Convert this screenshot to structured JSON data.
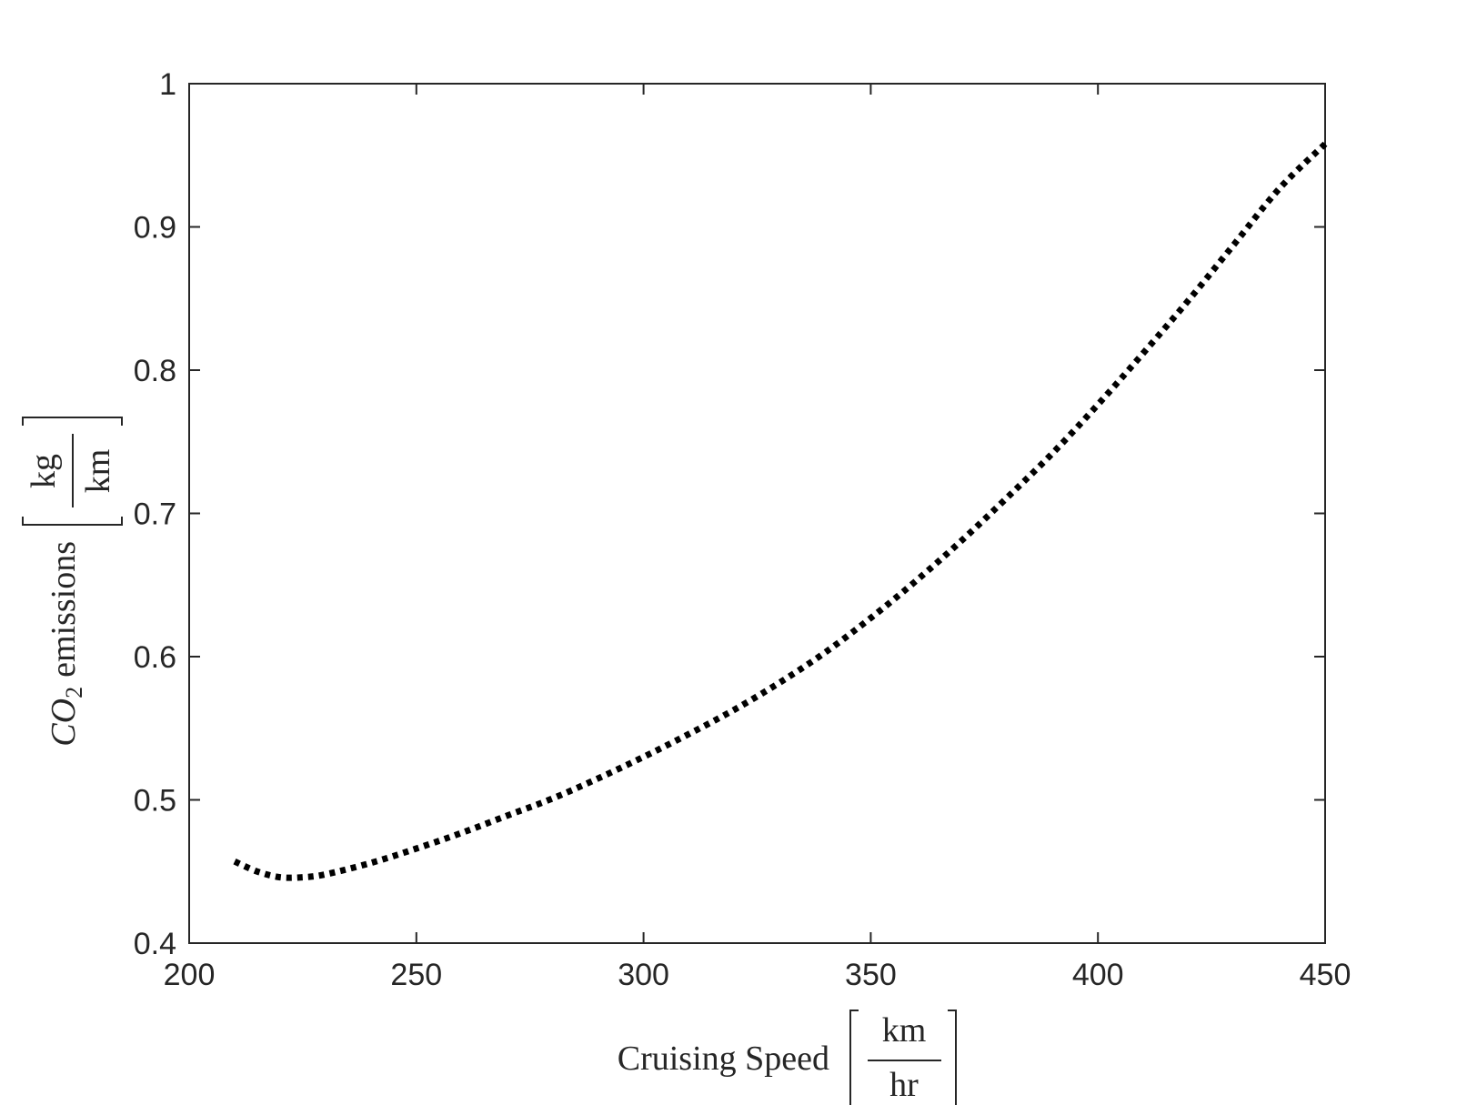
{
  "chart_data": {
    "type": "line",
    "title": "",
    "xlabel": {
      "text": "Cruising Speed",
      "unit_numerator": "km",
      "unit_denominator": "hr"
    },
    "ylabel": {
      "text_math": "CO",
      "text_sub": "2",
      "text_rest": "emissions",
      "unit_numerator": "kg",
      "unit_denominator": "km"
    },
    "xlim": [
      200,
      450
    ],
    "ylim": [
      0.4,
      1.0
    ],
    "xticks": [
      200,
      250,
      300,
      350,
      400,
      450
    ],
    "xtick_labels": [
      "200",
      "250",
      "300",
      "350",
      "400",
      "450"
    ],
    "yticks": [
      0.4,
      0.5,
      0.6,
      0.7,
      0.8,
      0.9,
      1.0
    ],
    "ytick_labels": [
      "0.4",
      "0.5",
      "0.6",
      "0.7",
      "0.8",
      "0.9",
      "1"
    ],
    "grid": false,
    "legend": false,
    "series": [
      {
        "line_style": "dotted",
        "color": "#000000",
        "x": [
          210,
          215,
          220,
          225,
          230,
          240,
          250,
          260,
          270,
          280,
          290,
          300,
          310,
          320,
          330,
          340,
          350,
          360,
          370,
          380,
          390,
          400,
          410,
          420,
          430,
          440,
          450
        ],
        "y": [
          0.457,
          0.45,
          0.446,
          0.446,
          0.448,
          0.456,
          0.466,
          0.477,
          0.489,
          0.501,
          0.515,
          0.53,
          0.546,
          0.563,
          0.582,
          0.603,
          0.627,
          0.653,
          0.681,
          0.711,
          0.742,
          0.776,
          0.812,
          0.849,
          0.888,
          0.927,
          0.958
        ]
      }
    ]
  }
}
